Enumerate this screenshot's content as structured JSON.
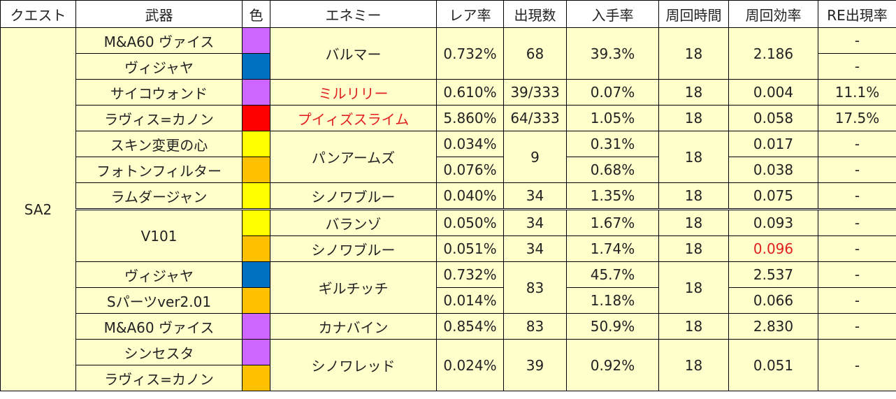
{
  "headers": [
    "クエスト",
    "武器",
    "色",
    "エネミー",
    "レア率",
    "出現数",
    "入手率",
    "周回時間",
    "周回効率",
    "RE出現率"
  ],
  "quest": "SA2",
  "colors": {
    "purple": "#cc66ff",
    "blue": "#0070c0",
    "red": "#ff0000",
    "yellow": "#ffff00",
    "orange": "#ffc000",
    "row_bg": "#ffffcc",
    "highlight_text": "#e02020"
  },
  "rows": [
    {
      "weapon": "M&A60 ヴァイス",
      "color": "purple",
      "enemy": "バルマー",
      "rare": "0.732%",
      "count": "68",
      "rate": "39.3%",
      "time": "18",
      "eff": "2.186",
      "re": "-"
    },
    {
      "weapon": "ヴィジャヤ",
      "color": "blue",
      "re": "-"
    },
    {
      "weapon": "サイコウォンド",
      "color": "purple",
      "enemy": "ミルリリー",
      "rare": "0.610%",
      "count": "39/333",
      "rate": "0.07%",
      "time": "18",
      "eff": "0.004",
      "re": "11.1%"
    },
    {
      "weapon": "ラヴィス=カノン",
      "color": "red",
      "enemy": "プイィズスライム",
      "rare": "5.860%",
      "count": "64/333",
      "rate": "1.05%",
      "time": "18",
      "eff": "0.058",
      "re": "17.5%"
    },
    {
      "weapon": "スキン変更の心",
      "color": "yellow",
      "enemy": "パンアームズ",
      "rare": "0.034%",
      "count": "9",
      "rate": "0.31%",
      "time": "18",
      "eff": "0.017",
      "re": "-"
    },
    {
      "weapon": "フォトンフィルター",
      "color": "orange",
      "rare": "0.076%",
      "rate": "0.68%",
      "eff": "0.038",
      "re": "-"
    },
    {
      "weapon": "ラムダージャン",
      "color": "yellow",
      "enemy": "シノワブルー",
      "rare": "0.040%",
      "count": "34",
      "rate": "1.35%",
      "time": "18",
      "eff": "0.075",
      "re": "-"
    },
    {
      "weapon": "V101",
      "color": "yellow",
      "enemy": "バランゾ",
      "rare": "0.050%",
      "count": "34",
      "rate": "1.67%",
      "time": "18",
      "eff": "0.093",
      "re": "-"
    },
    {
      "color": "orange",
      "enemy": "シノワブルー",
      "rare": "0.051%",
      "count": "34",
      "rate": "1.74%",
      "time": "18",
      "eff": "0.096",
      "re": "-"
    },
    {
      "weapon": "ヴィジャヤ",
      "color": "blue",
      "enemy": "ギルチッチ",
      "rare": "0.732%",
      "count": "83",
      "rate": "45.7%",
      "time": "18",
      "eff": "2.537",
      "re": "-"
    },
    {
      "weapon": "Sパーツver2.01",
      "color": "orange",
      "rare": "0.014%",
      "rate": "1.18%",
      "eff": "0.066",
      "re": "-"
    },
    {
      "weapon": "M&A60 ヴァイス",
      "color": "purple",
      "enemy": "カナバイン",
      "rare": "0.854%",
      "count": "83",
      "rate": "50.9%",
      "time": "18",
      "eff": "2.830",
      "re": "-"
    },
    {
      "weapon": "シンセスタ",
      "color": "purple",
      "enemy": "シノワレッド",
      "rare": "0.024%",
      "count": "39",
      "rate": "0.92%",
      "time": "18",
      "eff": "0.051",
      "re": "-"
    },
    {
      "weapon": "ラヴィス=カノン",
      "color": "orange"
    }
  ]
}
